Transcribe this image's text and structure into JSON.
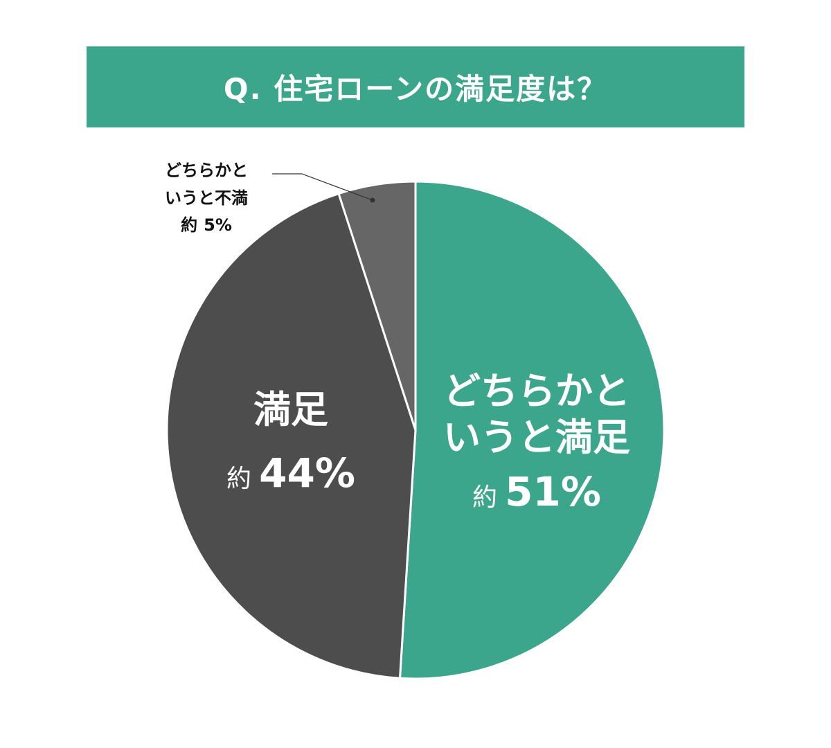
{
  "title": "Q. 住宅ローンの満足度は？",
  "chart_data": {
    "type": "pie",
    "title": "Q. 住宅ローンの満足度は？",
    "start_angle_deg": 0,
    "direction": "clockwise",
    "slices": [
      {
        "label_lines": [
          "どちらかと",
          "いうと満足"
        ],
        "prefix": "約",
        "value": 51,
        "display": "51%",
        "color": "#3ca68c"
      },
      {
        "label_lines": [
          "満足"
        ],
        "prefix": "約",
        "value": 44,
        "display": "44%",
        "color": "#4d4d4d"
      },
      {
        "label_lines": [
          "どちらかと",
          "いうと不満"
        ],
        "prefix": "約",
        "value": 5,
        "display": "5%",
        "color": "#666666"
      }
    ]
  },
  "colors": {
    "banner": "#3ca68c",
    "slice_border": "#ffffff",
    "leader": "#333333"
  }
}
